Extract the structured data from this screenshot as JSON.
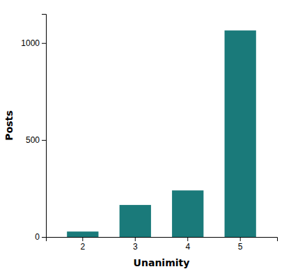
{
  "chart_data": {
    "type": "bar",
    "categories": [
      "2",
      "3",
      "4",
      "5"
    ],
    "values": [
      28,
      165,
      240,
      1065
    ],
    "color": "#1a7a7a",
    "xlabel": "Unanimity",
    "ylabel": "Posts",
    "ylim": [
      0,
      1150
    ],
    "yticks": [
      0,
      500,
      1000
    ],
    "grid": false
  }
}
